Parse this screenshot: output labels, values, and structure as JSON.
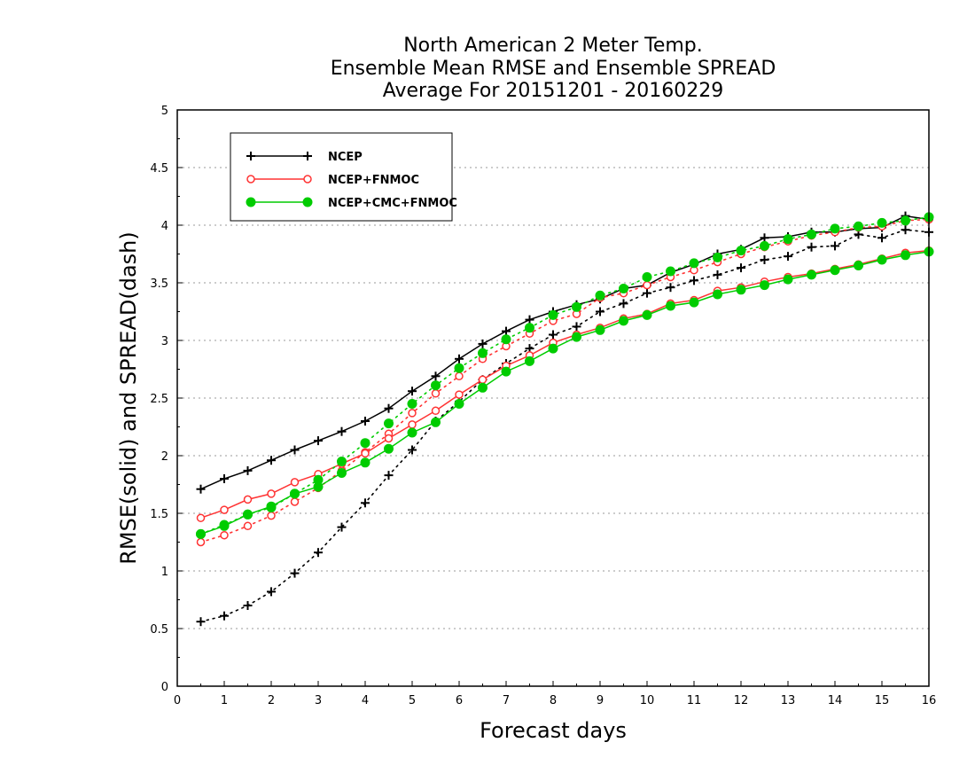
{
  "chart_data": {
    "type": "line",
    "title": [
      "North American 2 Meter Temp.",
      "Ensemble Mean RMSE and Ensemble SPREAD",
      "Average For 20151201 - 20160229"
    ],
    "xlabel": "Forecast days",
    "ylabel": "RMSE(solid) and SPREAD(dash)",
    "xlim": [
      0,
      16
    ],
    "ylim": [
      0,
      5
    ],
    "x_ticks": [
      "0",
      "1",
      "2",
      "3",
      "4",
      "5",
      "6",
      "7",
      "8",
      "9",
      "10",
      "11",
      "12",
      "13",
      "14",
      "15",
      "16"
    ],
    "y_ticks": [
      "0",
      "0.5",
      "1",
      "1.5",
      "2",
      "2.5",
      "3",
      "3.5",
      "4",
      "4.5",
      "5"
    ],
    "grid": true,
    "legend_position": "top-left",
    "x": [
      0.5,
      1,
      1.5,
      2,
      2.5,
      3,
      3.5,
      4,
      4.5,
      5,
      5.5,
      6,
      6.5,
      7,
      7.5,
      8,
      8.5,
      9,
      9.5,
      10,
      10.5,
      11,
      11.5,
      12,
      12.5,
      13,
      13.5,
      14,
      14.5,
      15,
      15.5,
      16
    ],
    "series": [
      {
        "name": "NCEP",
        "color": "#000000",
        "marker": "plus",
        "rmse": [
          1.71,
          1.8,
          1.87,
          1.96,
          2.05,
          2.13,
          2.21,
          2.3,
          2.41,
          2.56,
          2.69,
          2.84,
          2.97,
          3.08,
          3.18,
          3.25,
          3.31,
          3.36,
          3.45,
          3.48,
          3.59,
          3.66,
          3.75,
          3.79,
          3.89,
          3.9,
          3.94,
          3.94,
          3.97,
          3.98,
          4.08,
          4.05
        ],
        "spread": [
          0.56,
          0.61,
          0.7,
          0.82,
          0.98,
          1.16,
          1.38,
          1.59,
          1.83,
          2.05,
          2.3,
          2.47,
          2.66,
          2.8,
          2.93,
          3.05,
          3.12,
          3.25,
          3.32,
          3.41,
          3.46,
          3.52,
          3.57,
          3.63,
          3.7,
          3.73,
          3.81,
          3.82,
          3.92,
          3.89,
          3.96,
          3.94
        ]
      },
      {
        "name": "NCEP+FNMOC",
        "color": "#ff3333",
        "marker": "open-circle",
        "rmse": [
          1.46,
          1.53,
          1.62,
          1.67,
          1.77,
          1.84,
          1.93,
          2.02,
          2.15,
          2.27,
          2.39,
          2.53,
          2.66,
          2.78,
          2.87,
          2.98,
          3.05,
          3.11,
          3.19,
          3.23,
          3.32,
          3.35,
          3.43,
          3.46,
          3.51,
          3.55,
          3.58,
          3.62,
          3.66,
          3.71,
          3.76,
          3.78
        ],
        "spread": [
          1.25,
          1.31,
          1.39,
          1.48,
          1.6,
          1.72,
          1.87,
          2.03,
          2.19,
          2.37,
          2.54,
          2.69,
          2.84,
          2.95,
          3.06,
          3.17,
          3.23,
          3.37,
          3.41,
          3.48,
          3.55,
          3.61,
          3.68,
          3.75,
          3.81,
          3.86,
          3.91,
          3.94,
          3.98,
          3.99,
          4.04,
          4.05
        ]
      },
      {
        "name": "NCEP+CMC+FNMOC",
        "color": "#00cc00",
        "marker": "filled-circle",
        "rmse": [
          1.32,
          1.39,
          1.49,
          1.56,
          1.67,
          1.73,
          1.85,
          1.94,
          2.06,
          2.2,
          2.29,
          2.45,
          2.59,
          2.73,
          2.82,
          2.93,
          3.03,
          3.09,
          3.17,
          3.22,
          3.3,
          3.33,
          3.4,
          3.44,
          3.48,
          3.53,
          3.57,
          3.61,
          3.65,
          3.7,
          3.74,
          3.77
        ],
        "spread": [
          1.32,
          1.4,
          1.49,
          1.55,
          1.67,
          1.79,
          1.95,
          2.11,
          2.28,
          2.45,
          2.61,
          2.76,
          2.89,
          3.01,
          3.11,
          3.22,
          3.29,
          3.39,
          3.45,
          3.55,
          3.6,
          3.67,
          3.72,
          3.78,
          3.82,
          3.88,
          3.92,
          3.97,
          3.99,
          4.02,
          4.04,
          4.07
        ]
      }
    ]
  }
}
